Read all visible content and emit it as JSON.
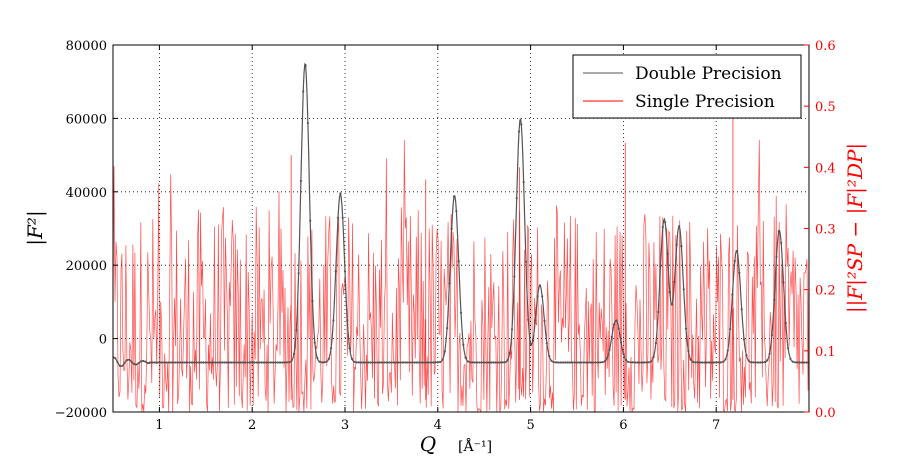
{
  "chart_data": {
    "type": "line",
    "xlabel": "Q",
    "xlabel_unit": "[Å⁻¹]",
    "ylabel": "|F²|",
    "y2label": "||F|²SP − |F|²DP|",
    "xlim": [
      0.5,
      8.0
    ],
    "ylim": [
      -20000,
      80000
    ],
    "y2lim": [
      0.0,
      0.6
    ],
    "x_ticks": [
      "1",
      "2",
      "3",
      "4",
      "5",
      "6",
      "7"
    ],
    "y_ticks": [
      "−20000",
      "0",
      "20000",
      "40000",
      "60000",
      "80000"
    ],
    "y2_ticks": [
      "0.0",
      "0.1",
      "0.2",
      "0.3",
      "0.4",
      "0.5",
      "0.6"
    ],
    "grid": true,
    "legend_position": "top-right",
    "colors": {
      "double": "#555555",
      "single": "#ff0000"
    },
    "series": [
      {
        "name": "Double Precision",
        "axis": "left",
        "baseline": -6500,
        "peaks": [
          {
            "q": 2.57,
            "value": 75000
          },
          {
            "q": 2.95,
            "value": 39500
          },
          {
            "q": 4.18,
            "value": 39000
          },
          {
            "q": 4.89,
            "value": 60000
          },
          {
            "q": 5.1,
            "value": 14500
          },
          {
            "q": 5.92,
            "value": 5000
          },
          {
            "q": 6.44,
            "value": 32500
          },
          {
            "q": 6.6,
            "value": 30500
          },
          {
            "q": 7.22,
            "value": 24000
          },
          {
            "q": 7.68,
            "value": 29500
          }
        ]
      },
      {
        "name": "Single Precision",
        "axis": "right",
        "note_range": [
          0.0,
          0.52
        ]
      }
    ]
  }
}
